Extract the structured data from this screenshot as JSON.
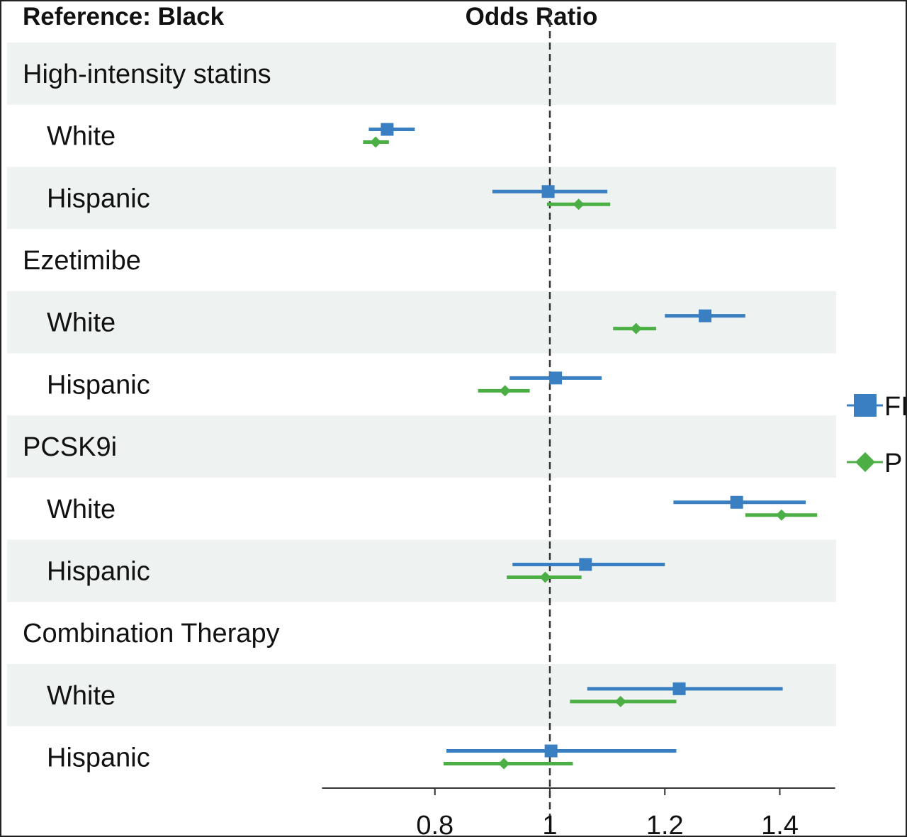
{
  "chart_data": {
    "type": "forest",
    "ref_label": "Reference: Black",
    "title": "Odds Ratio",
    "xlabel": "",
    "xlim": [
      0.6,
      1.5
    ],
    "xticks": [
      0.8,
      1,
      1.2,
      1.4
    ],
    "xtick_labels": [
      "0.8",
      "1",
      "1.2",
      "1.4"
    ],
    "reference_line": 1,
    "series": [
      {
        "name": "FI",
        "color": "#3a7fc1",
        "marker": "square"
      },
      {
        "name": "P",
        "color": "#4caf45",
        "marker": "diamond"
      }
    ],
    "rows": [
      {
        "type": "group",
        "label": "High-intensity statins",
        "shaded": true
      },
      {
        "type": "item",
        "label": "White",
        "shaded": false,
        "estimates": [
          [
            0.717,
            0.685,
            0.765
          ],
          [
            0.697,
            0.675,
            0.72
          ]
        ]
      },
      {
        "type": "item",
        "label": "Hispanic",
        "shaded": true,
        "estimates": [
          [
            0.997,
            0.9,
            1.1
          ],
          [
            1.05,
            0.995,
            1.105
          ]
        ]
      },
      {
        "type": "group",
        "label": "Ezetimibe",
        "shaded": false
      },
      {
        "type": "item",
        "label": "White",
        "shaded": true,
        "estimates": [
          [
            1.27,
            1.2,
            1.34
          ],
          [
            1.15,
            1.11,
            1.185
          ]
        ]
      },
      {
        "type": "item",
        "label": "Hispanic",
        "shaded": false,
        "estimates": [
          [
            1.01,
            0.93,
            1.09
          ],
          [
            0.922,
            0.875,
            0.965
          ]
        ]
      },
      {
        "type": "group",
        "label": "PCSK9i",
        "shaded": true
      },
      {
        "type": "item",
        "label": "White",
        "shaded": false,
        "estimates": [
          [
            1.325,
            1.215,
            1.445
          ],
          [
            1.403,
            1.34,
            1.465
          ]
        ]
      },
      {
        "type": "item",
        "label": "Hispanic",
        "shaded": true,
        "estimates": [
          [
            1.062,
            0.935,
            1.2
          ],
          [
            0.992,
            0.925,
            1.055
          ]
        ]
      },
      {
        "type": "group",
        "label": "Combination Therapy",
        "shaded": false
      },
      {
        "type": "item",
        "label": "White",
        "shaded": true,
        "estimates": [
          [
            1.225,
            1.065,
            1.405
          ],
          [
            1.123,
            1.035,
            1.22
          ]
        ]
      },
      {
        "type": "item",
        "label": "Hispanic",
        "shaded": false,
        "estimates": [
          [
            1.002,
            0.82,
            1.22
          ],
          [
            0.92,
            0.815,
            1.04
          ]
        ]
      }
    ]
  }
}
